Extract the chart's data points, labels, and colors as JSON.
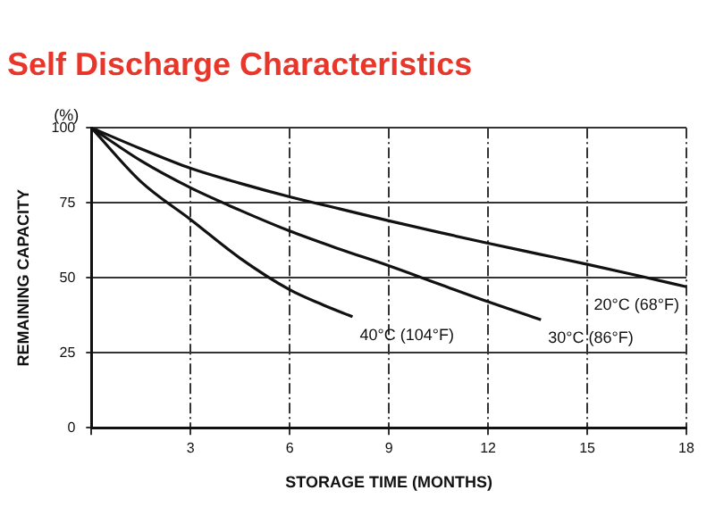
{
  "chart_data": {
    "type": "line",
    "title": "Self Discharge Characteristics",
    "xlabel": "STORAGE TIME (MONTHS)",
    "ylabel": "REMAINING CAPACITY",
    "annotations": [
      "(%)"
    ],
    "xlim": [
      0,
      18
    ],
    "xticks": [
      {
        "value": 0,
        "label": null
      },
      3,
      6,
      9,
      12,
      15,
      18
    ],
    "ylim": [
      0,
      100
    ],
    "yticks": [
      0,
      25,
      50,
      75,
      100
    ],
    "grid": true,
    "legend": false,
    "marker": "none",
    "line_style": "solid",
    "series": [
      {
        "name": "20°C (68°F)",
        "color": "#111111",
        "x": [
          0,
          1.5,
          3,
          4.5,
          6,
          7.5,
          9,
          10.5,
          12,
          13.5,
          15,
          16.5,
          18
        ],
        "values": [
          100,
          93,
          86.5,
          81.5,
          77,
          73,
          69,
          65.2,
          61.5,
          58,
          54.5,
          50.8,
          47
        ]
      },
      {
        "name": "30°C (86°F)",
        "color": "#111111",
        "x": [
          0,
          1.5,
          3,
          4.5,
          6,
          7.5,
          9,
          10.5,
          12,
          13.6
        ],
        "values": [
          100,
          89,
          80,
          72.5,
          65.6,
          59.6,
          54,
          48,
          42,
          36
        ]
      },
      {
        "name": "40°C (104°F)",
        "color": "#111111",
        "x": [
          0,
          1.5,
          3,
          4.5,
          6,
          7,
          7.9
        ],
        "values": [
          100,
          82,
          69.4,
          56.5,
          46,
          41,
          37
        ]
      }
    ]
  }
}
